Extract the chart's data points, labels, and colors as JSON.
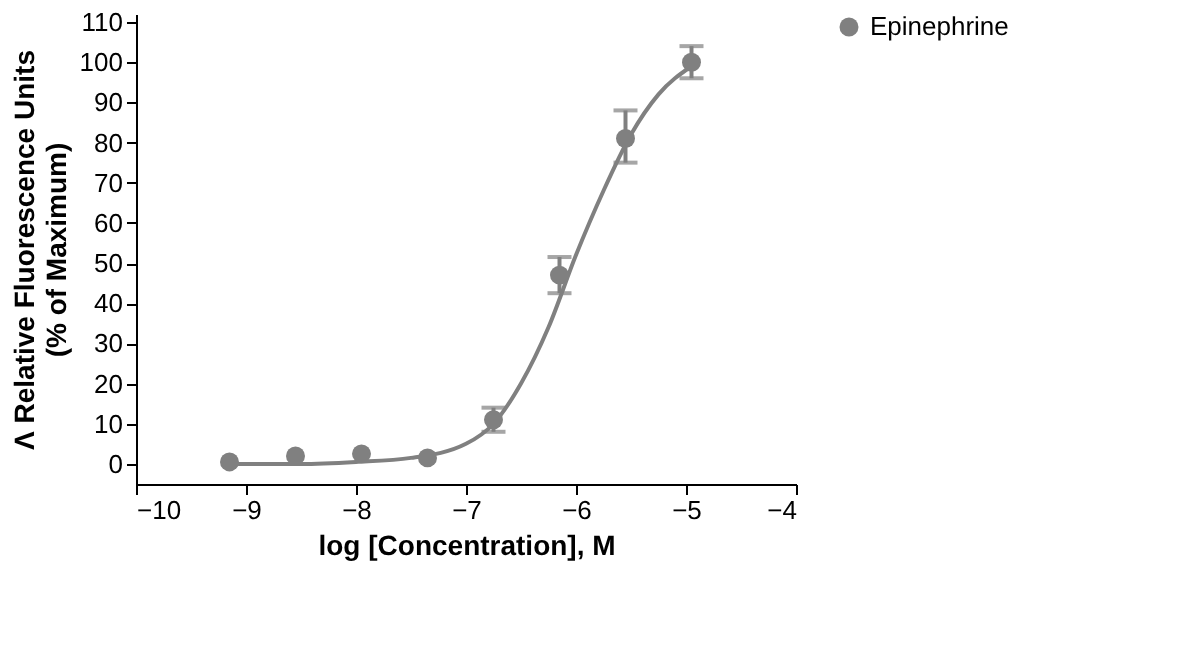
{
  "chart_data": {
    "type": "scatter",
    "xlabel": "log [Concentration], M",
    "ylabel": "Λ Relative Fluorescence Units\n(% of Maximum)",
    "xlim": [
      -10,
      -4
    ],
    "xticks": [
      -10,
      -9,
      -8,
      -7,
      -6,
      -5,
      -4
    ],
    "ylim": [
      -5,
      112
    ],
    "yticks": [
      0,
      10,
      20,
      30,
      40,
      50,
      60,
      70,
      80,
      90,
      100,
      110
    ],
    "grid": false,
    "legend": "top right",
    "series": [
      {
        "name": "Epinephrine",
        "color": "#808080",
        "marker": "circle",
        "x": [
          -9.15,
          -8.55,
          -7.95,
          -7.35,
          -6.75,
          -6.15,
          -5.55,
          -4.95
        ],
        "values": [
          0.5,
          2,
          2.5,
          1.5,
          11,
          47,
          81,
          100
        ],
        "errors": [
          null,
          null,
          null,
          null,
          3,
          4.5,
          [
            75,
            88
          ],
          4
        ]
      },
      {
        "color": "#808080",
        "type": "line",
        "marker": "none",
        "x": [
          -9.15,
          -8.5,
          -8,
          -7.5,
          -7,
          -6.75,
          -6.5,
          -6.25,
          -6,
          -5.75,
          -5.5,
          -5.25,
          -4.95
        ],
        "values": [
          0,
          0,
          0.5,
          1.5,
          5,
          10,
          20,
          34,
          52,
          68,
          82,
          92,
          99
        ]
      }
    ]
  }
}
